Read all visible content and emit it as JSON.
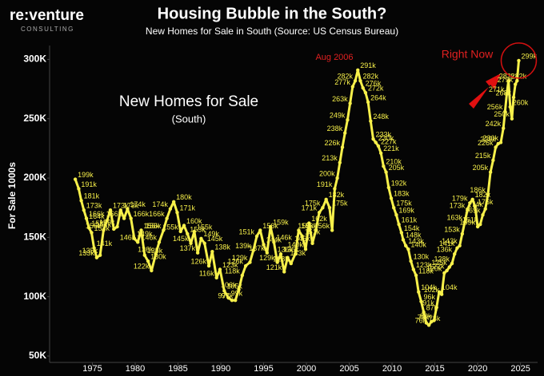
{
  "chart_data": {
    "type": "line",
    "logo": "re:venture",
    "logo_sub": "CONSULTING",
    "title": "Housing Bubble in the South?",
    "subtitle": "New Homes for Sale in South (Source: US Census Bureau)",
    "inset_title": "New Homes for Sale",
    "inset_subtitle": "(South)",
    "y_label": "For Sale 1000s",
    "annotations": [
      "Aug 2006",
      "Right Now"
    ],
    "color": "#f7f04a",
    "xlim": [
      1970,
      2027
    ],
    "xticks": [
      1975,
      1980,
      1985,
      1990,
      1995,
      2000,
      2005,
      2010,
      2015,
      2020,
      2025
    ],
    "ylim": [
      50,
      305
    ],
    "yticks": [
      {
        "value": 50,
        "label": "50K"
      },
      {
        "value": 100,
        "label": "100K"
      },
      {
        "value": 150,
        "label": "150K"
      },
      {
        "value": 200,
        "label": "200K"
      },
      {
        "value": 250,
        "label": "250K"
      },
      {
        "value": 300,
        "label": "300K"
      }
    ],
    "grid": false,
    "x": [
      1973.0,
      1973.4,
      1973.7,
      1974.0,
      1974.3,
      1974.6,
      1974.9,
      1975.2,
      1975.5,
      1975.9,
      1976.3,
      1976.7,
      1977.1,
      1977.5,
      1977.9,
      1978.3,
      1978.7,
      1979.1,
      1979.5,
      1979.9,
      1980.3,
      1980.7,
      1981.1,
      1981.5,
      1981.9,
      1982.4,
      1982.8,
      1983.3,
      1983.7,
      1984.1,
      1984.5,
      1984.9,
      1985.3,
      1985.7,
      1986.1,
      1986.5,
      1986.9,
      1987.3,
      1987.7,
      1988.1,
      1988.6,
      1989.0,
      1989.5,
      1989.9,
      1990.4,
      1990.9,
      1991.3,
      1991.7,
      1992.1,
      1992.5,
      1992.9,
      1993.4,
      1993.8,
      1994.2,
      1994.6,
      1995.0,
      1995.4,
      1995.8,
      1996.2,
      1996.6,
      1997.0,
      1997.4,
      1997.8,
      1998.2,
      1998.7,
      1999.1,
      1999.5,
      1999.9,
      2000.3,
      2000.7,
      2001.1,
      2001.5,
      2001.9,
      2002.3,
      2002.7,
      2003.0,
      2003.3,
      2003.6,
      2003.9,
      2004.2,
      2004.5,
      2004.8,
      2005.1,
      2005.4,
      2005.7,
      2006.0,
      2006.3,
      2006.6,
      2006.9,
      2007.2,
      2007.5,
      2007.8,
      2008.1,
      2008.4,
      2008.7,
      2009.0,
      2009.3,
      2009.6,
      2009.9,
      2010.2,
      2010.5,
      2010.8,
      2011.1,
      2011.3,
      2011.6,
      2011.9,
      2012.2,
      2012.5,
      2012.8,
      2013.1,
      2013.4,
      2013.7,
      2014.0,
      2014.3,
      2014.6,
      2014.9,
      2015.2,
      2015.5,
      2015.8,
      2016.1,
      2016.4,
      2016.7,
      2017.0,
      2017.3,
      2017.6,
      2017.9,
      2018.2,
      2018.5,
      2018.8,
      2019.1,
      2019.4,
      2019.7,
      2020.0,
      2020.3,
      2020.6,
      2020.9,
      2021.2,
      2021.5,
      2021.8,
      2022.1,
      2022.4,
      2022.7,
      2023.0,
      2023.2,
      2023.4,
      2023.6,
      2023.8,
      2024.0,
      2024.2,
      2024.4,
      2024.6,
      2024.8
    ],
    "values": [
      199,
      191,
      181,
      173,
      166,
      158,
      154,
      141,
      133,
      135,
      156,
      164,
      173,
      157,
      159,
      173,
      166,
      174,
      166,
      149,
      146,
      156,
      135,
      130,
      122,
      136,
      146,
      156,
      166,
      174,
      180,
      171,
      155,
      160,
      153,
      145,
      155,
      137,
      149,
      145,
      126,
      138,
      116,
      123,
      105,
      99,
      97,
      97,
      106,
      118,
      126,
      129,
      139,
      151,
      156,
      144,
      137,
      159,
      146,
      129,
      136,
      121,
      133,
      128,
      136,
      156,
      151,
      140,
      162,
      145,
      156,
      171,
      175,
      182,
      175,
      156,
      191,
      200,
      213,
      226,
      238,
      249,
      263,
      277,
      282,
      291,
      282,
      276,
      272,
      264,
      248,
      233,
      230,
      227,
      221,
      210,
      205,
      192,
      183,
      175,
      169,
      161,
      154,
      148,
      143,
      140,
      130,
      123,
      118,
      104,
      96,
      87,
      78,
      76,
      79,
      80,
      91,
      104,
      102,
      120,
      122,
      125,
      128,
      136,
      141,
      143,
      153,
      163,
      173,
      179,
      182,
      176,
      159,
      161,
      169,
      174,
      186,
      205,
      215,
      226,
      229,
      230,
      242,
      256,
      271,
      282,
      260,
      250,
      268,
      279,
      282,
      299
    ],
    "value_labels": [
      "199k",
      "191k",
      "181k",
      "173k",
      "166k",
      "158k",
      "154k",
      "141k",
      "133k",
      "135k",
      "156k",
      "164k",
      "173k",
      "157k",
      "159k",
      "173k",
      "166k",
      "174k",
      "166k",
      "149k",
      "146k",
      "156k",
      "135k",
      "130k",
      "122k",
      "136k",
      "146k",
      "156k",
      "166k",
      "174k",
      "180k",
      "171k",
      "155k",
      "160k",
      "153k",
      "145k",
      "155k",
      "137k",
      "149k",
      "145k",
      "126k",
      "138k",
      "116k",
      "123k",
      "105k",
      "99k",
      "97k",
      "97k",
      "106k",
      "118k",
      "126k",
      "129k",
      "139k",
      "151k",
      "156k",
      "144k",
      "137k",
      "159k",
      "146k",
      "129k",
      "136k",
      "121k",
      "133k",
      "128k",
      "136k",
      "156k",
      "151k",
      "140k",
      "162k",
      "145k",
      "156k",
      "171k",
      "175k",
      "182k",
      "175k",
      "156k",
      "191k",
      "200k",
      "213k",
      "226k",
      "238k",
      "249k",
      "263k",
      "277k",
      "282k",
      "291k",
      "282k",
      "276k",
      "272k",
      "264k",
      "248k",
      "233k",
      "230k",
      "227k",
      "221k",
      "210k",
      "205k",
      "192k",
      "183k",
      "175k",
      "169k",
      "161k",
      "154k",
      "148k",
      "143k",
      "140k",
      "130k",
      "123k",
      "118k",
      "104k",
      "96k",
      "87k",
      "78k",
      "76k",
      "79k",
      "80k",
      "91k",
      "104k",
      "102k",
      "120k",
      "122k",
      "125k",
      "128k",
      "136k",
      "141k",
      "143k",
      "153k",
      "163k",
      "173k",
      "179k",
      "182k",
      "176k",
      "159k",
      "161k",
      "169k",
      "174k",
      "186k",
      "205k",
      "215k",
      "226k",
      "229k",
      "230k",
      "242k",
      "256k",
      "271k",
      "282k",
      "260k",
      "250k",
      "268k",
      "279k",
      "282k",
      "299k"
    ]
  }
}
